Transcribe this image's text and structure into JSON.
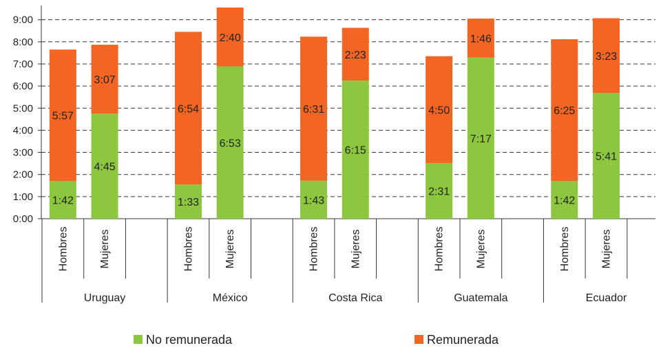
{
  "chart_data": {
    "type": "bar",
    "stacked": true,
    "y_ticks": [
      "0:00",
      "1:00",
      "2:00",
      "3:00",
      "4:00",
      "5:00",
      "6:00",
      "7:00",
      "8:00",
      "9:00"
    ],
    "ylim_minutes": [
      0,
      570
    ],
    "grid": "horizontal dashed",
    "legend_position": "bottom",
    "categories": [
      {
        "country": "Uruguay",
        "bars": [
          {
            "sex": "Hombres",
            "no_remunerada": "1:42",
            "remunerada": "5:57"
          },
          {
            "sex": "Mujeres",
            "no_remunerada": "4:45",
            "remunerada": "3:07"
          }
        ]
      },
      {
        "country": "México",
        "bars": [
          {
            "sex": "Hombres",
            "no_remunerada": "1:33",
            "remunerada": "6:54"
          },
          {
            "sex": "Mujeres",
            "no_remunerada": "6:53",
            "remunerada": "2:40"
          }
        ]
      },
      {
        "country": "Costa Rica",
        "bars": [
          {
            "sex": "Hombres",
            "no_remunerada": "1:43",
            "remunerada": "6:31"
          },
          {
            "sex": "Mujeres",
            "no_remunerada": "6:15",
            "remunerada": "2:23"
          }
        ]
      },
      {
        "country": "Guatemala",
        "bars": [
          {
            "sex": "Hombres",
            "no_remunerada": "2:31",
            "remunerada": "4:50"
          },
          {
            "sex": "Mujeres",
            "no_remunerada": "7:17",
            "remunerada": "1:46"
          }
        ]
      },
      {
        "country": "Ecuador",
        "bars": [
          {
            "sex": "Hombres",
            "no_remunerada": "1:42",
            "remunerada": "6:25"
          },
          {
            "sex": "Mujeres",
            "no_remunerada": "5:41",
            "remunerada": "3:23"
          }
        ]
      }
    ],
    "series": [
      {
        "key": "no_remunerada",
        "name": "No remunerada",
        "color": "#8dc63f"
      },
      {
        "key": "remunerada",
        "name": "Remunerada",
        "color": "#f26522"
      }
    ]
  }
}
